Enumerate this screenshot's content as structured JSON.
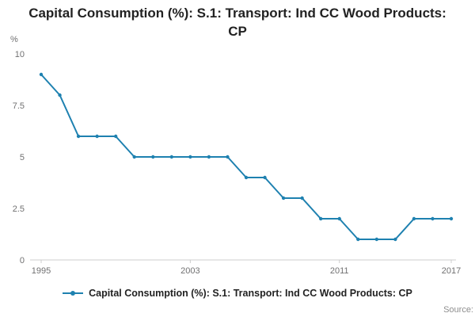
{
  "page": {
    "title": "Capital Consumption (%): S.1: Transport: Ind CC Wood Products: CP",
    "source_label": "Source:"
  },
  "legend": {
    "label": "Capital Consumption (%): S.1: Transport: Ind CC Wood Products: CP"
  },
  "chart_data": {
    "type": "line",
    "title": "Capital Consumption (%): S.1: Transport: Ind CC Wood Products: CP",
    "xlabel": "",
    "ylabel": "%",
    "x": [
      1995,
      1996,
      1997,
      1998,
      1999,
      2000,
      2001,
      2002,
      2003,
      2004,
      2005,
      2006,
      2007,
      2008,
      2009,
      2010,
      2011,
      2012,
      2013,
      2014,
      2015,
      2016,
      2017
    ],
    "series": [
      {
        "name": "Capital Consumption (%): S.1: Transport: Ind CC Wood Products: CP",
        "values": [
          9,
          8,
          6,
          6,
          6,
          5,
          5,
          5,
          5,
          5,
          5,
          4,
          4,
          3,
          3,
          2,
          2,
          1,
          1,
          1,
          2,
          2,
          2
        ],
        "color": "#1e81b0"
      }
    ],
    "xlim": [
      1995,
      2017
    ],
    "ylim": [
      0,
      10
    ],
    "x_ticks": [
      "1995",
      "2003",
      "2011",
      "2017"
    ],
    "y_ticks": [
      "0",
      "2.5",
      "5",
      "7.5",
      "10"
    ],
    "grid": false,
    "legend_position": "bottom",
    "markers": true,
    "axis_color": "#cccccc",
    "tick_label_color": "#707071"
  }
}
